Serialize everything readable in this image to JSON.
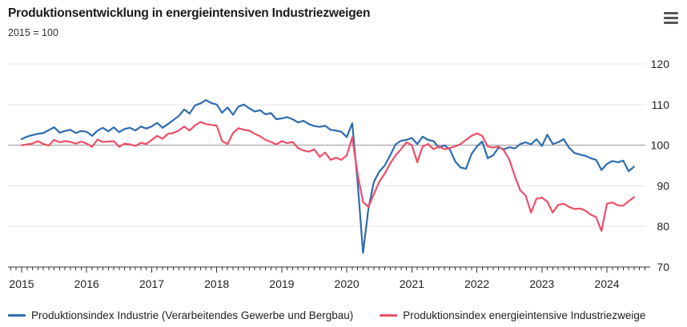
{
  "header": {
    "title": "Produktionsentwicklung in energieintensiven Industriezweigen",
    "subtitle": "2015 = 100",
    "menu_icon": "hamburger-icon"
  },
  "chart_data": {
    "type": "line",
    "title": "Produktionsentwicklung in energieintensiven Industriezweigen",
    "subtitle": "2015 = 100",
    "x_start": "2015-01",
    "x_freq": "monthly",
    "x_tick_labels": [
      "2015",
      "2016",
      "2017",
      "2018",
      "2019",
      "2020",
      "2021",
      "2022",
      "2023",
      "2024"
    ],
    "y_tick_labels": [
      "120",
      "110",
      "100",
      "90",
      "80",
      "70"
    ],
    "y_ticks": [
      120,
      110,
      100,
      90,
      80,
      70
    ],
    "ylim": [
      70,
      125
    ],
    "grid": "horizontal",
    "baseline_value": 100,
    "legend_position": "bottom",
    "colors": {
      "series_blue": "#2e6cb0",
      "series_red": "#ef4e68",
      "grid_light": "#e4e4e4",
      "grid_baseline": "#9a9a9a",
      "axis": "#333333",
      "text": "#222222"
    },
    "series": [
      {
        "name": "Produktionsindex Industrie (Verarbeitendes Gewerbe und Bergbau)",
        "color": "#2e6cb0",
        "values": [
          101.5,
          102.1,
          102.5,
          102.8,
          103.0,
          103.7,
          104.4,
          103.1,
          103.5,
          103.8,
          103.0,
          103.5,
          103.3,
          102.3,
          103.6,
          104.3,
          103.4,
          104.4,
          103.2,
          104.0,
          104.3,
          103.6,
          104.6,
          104.1,
          104.6,
          105.5,
          104.3,
          105.2,
          106.2,
          107.2,
          108.8,
          107.8,
          109.8,
          110.3,
          111.1,
          110.4,
          110.0,
          108.0,
          109.3,
          107.5,
          109.5,
          110.0,
          109.1,
          108.3,
          108.6,
          107.6,
          107.9,
          106.4,
          106.6,
          106.9,
          106.4,
          105.6,
          106.0,
          105.2,
          104.7,
          104.5,
          104.8,
          103.8,
          103.6,
          103.3,
          102.0,
          105.4,
          91.0,
          73.5,
          84.5,
          91.0,
          93.5,
          95.0,
          97.5,
          100.2,
          101.1,
          101.3,
          101.8,
          100.3,
          102.1,
          101.3,
          101.0,
          99.4,
          100.0,
          99.0,
          96.0,
          94.5,
          94.2,
          97.8,
          99.7,
          100.9,
          96.8,
          97.5,
          99.4,
          99.0,
          99.5,
          99.2,
          100.3,
          100.7,
          100.2,
          101.5,
          99.8,
          102.6,
          100.3,
          100.7,
          101.5,
          99.4,
          98.1,
          97.7,
          97.4,
          96.8,
          96.4,
          93.9,
          95.4,
          96.1,
          95.8,
          96.2,
          93.6,
          94.7
        ]
      },
      {
        "name": "Produktionsindex energieintensive Industriezweige",
        "color": "#ef4e68",
        "values": [
          100.0,
          100.2,
          100.4,
          101.0,
          100.3,
          99.9,
          101.3,
          100.7,
          101.0,
          100.8,
          100.4,
          100.9,
          100.4,
          99.6,
          101.4,
          100.8,
          100.9,
          101.0,
          99.6,
          100.4,
          100.2,
          99.8,
          100.6,
          100.3,
          101.3,
          102.3,
          101.6,
          102.8,
          103.0,
          103.6,
          104.6,
          103.6,
          104.9,
          105.7,
          105.2,
          105.0,
          104.8,
          101.0,
          100.3,
          103.0,
          104.2,
          103.8,
          103.6,
          102.8,
          102.2,
          101.3,
          100.8,
          100.2,
          101.0,
          100.5,
          100.8,
          99.3,
          98.7,
          98.4,
          99.0,
          97.1,
          98.2,
          96.4,
          96.9,
          96.4,
          97.5,
          101.9,
          93.0,
          86.0,
          84.8,
          88.0,
          91.0,
          93.0,
          95.5,
          97.5,
          99.0,
          100.7,
          100.0,
          95.8,
          99.7,
          100.3,
          99.0,
          99.7,
          99.0,
          99.3,
          99.7,
          100.3,
          101.3,
          102.3,
          102.9,
          102.3,
          99.7,
          99.4,
          99.7,
          98.7,
          96.4,
          92.4,
          88.9,
          87.6,
          83.4,
          86.8,
          87.1,
          86.1,
          83.4,
          85.3,
          85.6,
          84.8,
          84.3,
          84.4,
          83.9,
          82.9,
          82.3,
          78.9,
          85.6,
          85.9,
          85.2,
          85.1,
          86.2,
          87.2
        ]
      }
    ]
  },
  "legend": {
    "items": [
      {
        "label": "Produktionsindex Industrie (Verarbeitendes Gewerbe und Bergbau)",
        "color": "#2e6cb0"
      },
      {
        "label": "Produktionsindex energieintensive Industriezweige",
        "color": "#ef4e68"
      }
    ]
  }
}
